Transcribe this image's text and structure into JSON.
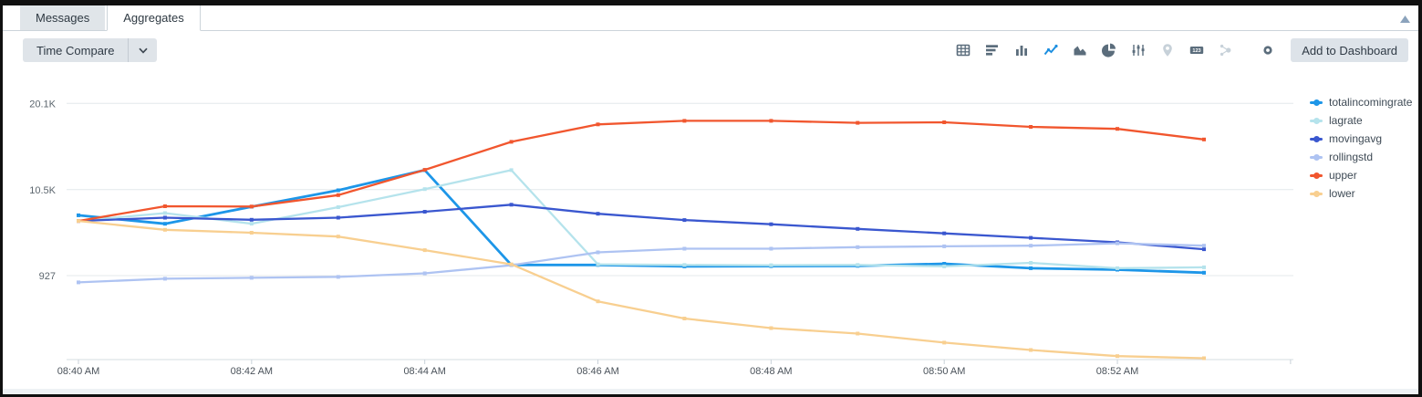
{
  "tabs": {
    "messages": "Messages",
    "aggregates": "Aggregates"
  },
  "toolbar": {
    "time_compare_label": "Time Compare",
    "add_to_dashboard_label": "Add to Dashboard",
    "icons": [
      {
        "name": "results-table",
        "state": "normal"
      },
      {
        "name": "bar-chart",
        "state": "normal"
      },
      {
        "name": "column-chart",
        "state": "normal"
      },
      {
        "name": "line-chart",
        "state": "selected"
      },
      {
        "name": "area-chart",
        "state": "normal"
      },
      {
        "name": "pie-chart",
        "state": "normal"
      },
      {
        "name": "scatter-chart",
        "state": "normal"
      },
      {
        "name": "map",
        "state": "disabled"
      },
      {
        "name": "single-value",
        "state": "normal"
      },
      {
        "name": "cluster-map",
        "state": "disabled"
      },
      {
        "name": "format-settings",
        "state": "normal",
        "gap_before": true
      }
    ]
  },
  "colors": {
    "accent_blue": "#1d8fe0",
    "icon_gray": "#5b6d7c",
    "icon_disabled": "#c7d1d9",
    "button_bg": "#dfe4e9",
    "tab_inactive_bg": "#e0e5e9",
    "gridline": "#e4e8eb",
    "axis_text": "#4a525a"
  },
  "chart_data": {
    "type": "line",
    "x_categories": [
      "08:40 AM",
      "08:41 AM",
      "08:42 AM",
      "08:43 AM",
      "08:44 AM",
      "08:45 AM",
      "08:46 AM",
      "08:47 AM",
      "08:48 AM",
      "08:49 AM",
      "08:50 AM",
      "08:51 AM",
      "08:52 AM",
      "08:53 AM"
    ],
    "x_tick_labels": [
      "08:40 AM",
      "08:42 AM",
      "08:44 AM",
      "08:46 AM",
      "08:48 AM",
      "08:50 AM",
      "08:52 AM"
    ],
    "y_ticks": [
      {
        "label": "20.1K",
        "value": 20100
      },
      {
        "label": "10.5K",
        "value": 10500
      },
      {
        "label": "927",
        "value": 927
      }
    ],
    "ylim": [
      -8500,
      21600
    ],
    "grid": "horizontal",
    "legend_position": "right",
    "series": [
      {
        "name": "totalincomingrate",
        "color": "#1d96e8",
        "values": [
          7640,
          6700,
          8600,
          10420,
          12670,
          2110,
          2110,
          1950,
          1980,
          2010,
          2250,
          1750,
          1580,
          1250
        ]
      },
      {
        "name": "lagrate",
        "color": "#b5e3ec",
        "values": [
          7010,
          7880,
          6710,
          8550,
          10560,
          12670,
          2180,
          2110,
          2080,
          2110,
          1950,
          2350,
          1750,
          1850
        ]
      },
      {
        "name": "movingavg",
        "color": "#3a57cf",
        "values": [
          7010,
          7380,
          7140,
          7380,
          8040,
          8820,
          7810,
          7110,
          6640,
          6130,
          5630,
          5130,
          4630,
          3860
        ]
      },
      {
        "name": "rollingstd",
        "color": "#aec3f2",
        "values": [
          170,
          575,
          680,
          780,
          1180,
          2080,
          3520,
          3920,
          3920,
          4090,
          4190,
          4260,
          4520,
          4260
        ]
      },
      {
        "name": "upper",
        "color": "#f1562e",
        "values": [
          7010,
          8650,
          8620,
          9890,
          12700,
          15820,
          17760,
          18160,
          18160,
          17930,
          17990,
          17490,
          17260,
          16080
        ]
      },
      {
        "name": "lower",
        "color": "#f8cf90",
        "values": [
          7010,
          6030,
          5700,
          5270,
          3760,
          2180,
          -1940,
          -3850,
          -4920,
          -5530,
          -6530,
          -7360,
          -8040,
          -8270
        ]
      }
    ]
  }
}
